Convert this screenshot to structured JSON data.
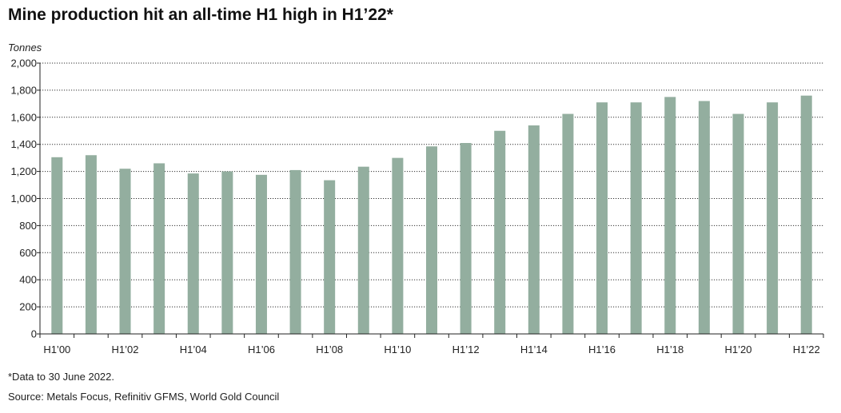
{
  "chart_data": {
    "type": "bar",
    "title": "Mine production hit an all-time H1 high in H1’22*",
    "ylabel": "Tonnes",
    "xlabel": "",
    "ylim": [
      0,
      2000
    ],
    "yticks": [
      "0",
      "200",
      "400",
      "600",
      "800",
      "1,000",
      "1,200",
      "1,400",
      "1,600",
      "1,800",
      "2,000"
    ],
    "ytick_values": [
      0,
      200,
      400,
      600,
      800,
      1000,
      1200,
      1400,
      1600,
      1800,
      2000
    ],
    "grid": true,
    "categories": [
      "H1’00",
      "H1’01",
      "H1’02",
      "H1’03",
      "H1’04",
      "H1’05",
      "H1’06",
      "H1’07",
      "H1’08",
      "H1’09",
      "H1’10",
      "H1’11",
      "H1’12",
      "H1’13",
      "H1’14",
      "H1’15",
      "H1’16",
      "H1’17",
      "H1’18",
      "H1’19",
      "H1’20",
      "H1’21",
      "H1’22"
    ],
    "xtick_labels": [
      "H1’00",
      "",
      "H1’02",
      "",
      "H1’04",
      "",
      "H1’06",
      "",
      "H1’08",
      "",
      "H1’10",
      "",
      "H1’12",
      "",
      "H1’14",
      "",
      "H1’16",
      "",
      "H1’18",
      "",
      "H1’20",
      "",
      "H1’22"
    ],
    "values": [
      1305,
      1320,
      1220,
      1260,
      1185,
      1200,
      1175,
      1210,
      1135,
      1235,
      1300,
      1385,
      1410,
      1500,
      1540,
      1625,
      1710,
      1710,
      1750,
      1720,
      1625,
      1710,
      1760
    ],
    "bar_color": "#93ae9f",
    "footnote": "*Data to 30 June 2022.",
    "source": "Source: Metals Focus, Refinitiv GFMS, World Gold Council"
  }
}
